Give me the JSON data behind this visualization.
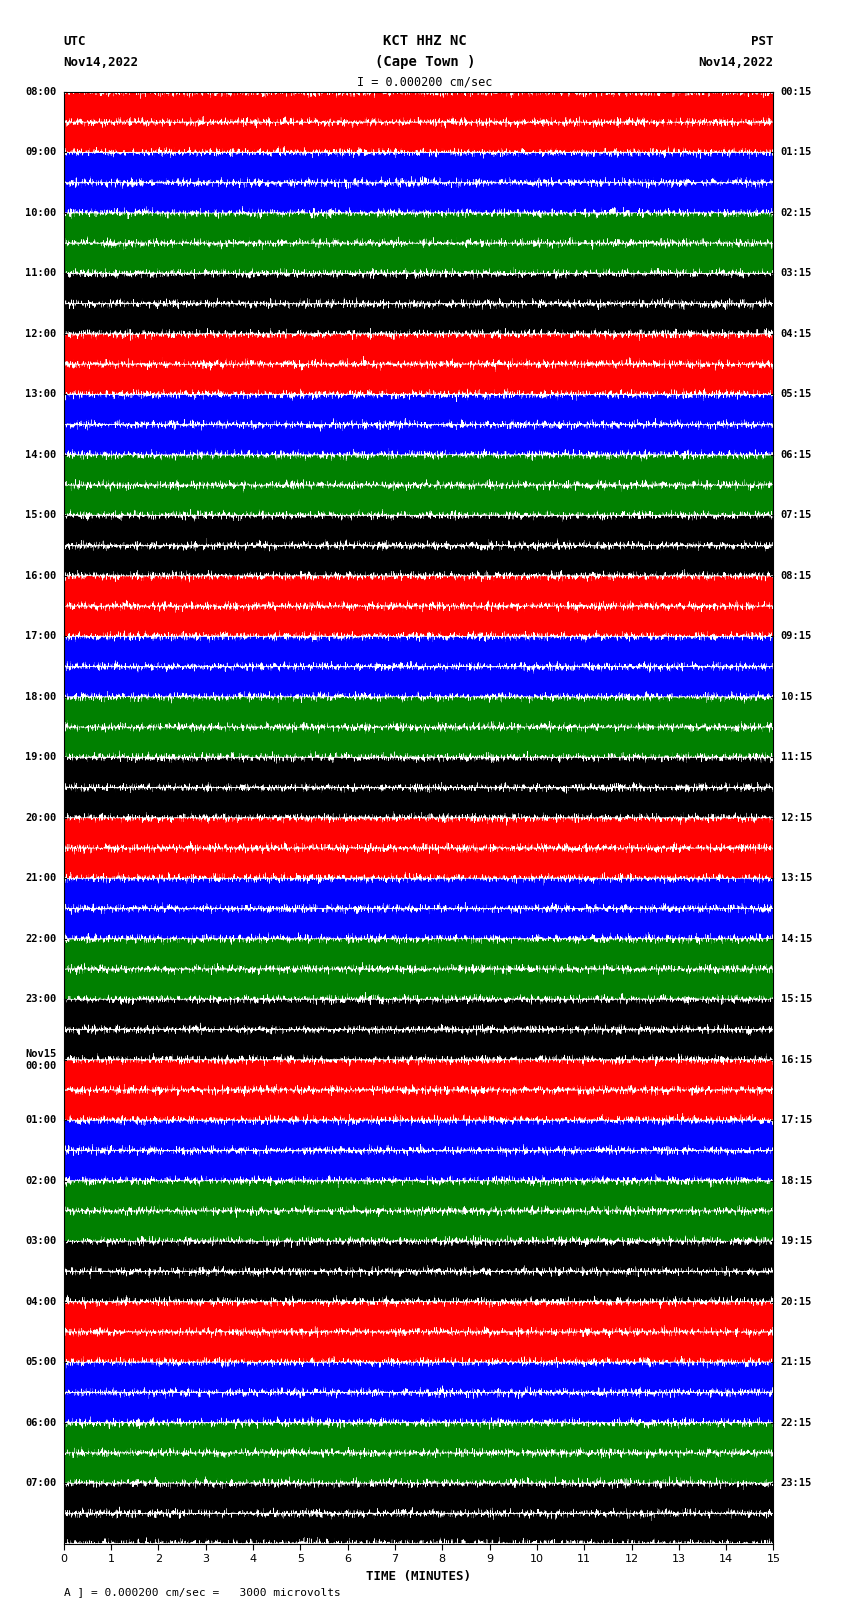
{
  "title_line1": "KCT HHZ NC",
  "title_line2": "(Cape Town )",
  "scale_label": "I = 0.000200 cm/sec",
  "left_label_line1": "UTC",
  "left_label_line2": "Nov14,2022",
  "right_label_line1": "PST",
  "right_label_line2": "Nov14,2022",
  "xlabel": "TIME (MINUTES)",
  "bottom_note": "A ] = 0.000200 cm/sec =   3000 microvolts",
  "utc_times": [
    "08:00",
    "09:00",
    "10:00",
    "11:00",
    "12:00",
    "13:00",
    "14:00",
    "15:00",
    "16:00",
    "17:00",
    "18:00",
    "19:00",
    "20:00",
    "21:00",
    "22:00",
    "23:00",
    "Nov15\n00:00",
    "01:00",
    "02:00",
    "03:00",
    "04:00",
    "05:00",
    "06:00",
    "07:00"
  ],
  "pst_times": [
    "00:15",
    "01:15",
    "02:15",
    "03:15",
    "04:15",
    "05:15",
    "06:15",
    "07:15",
    "08:15",
    "09:15",
    "10:15",
    "11:15",
    "12:15",
    "13:15",
    "14:15",
    "15:15",
    "16:15",
    "17:15",
    "18:15",
    "19:15",
    "20:15",
    "21:15",
    "22:15",
    "23:15"
  ],
  "num_rows": 24,
  "traces_per_row": 2,
  "minutes_per_row": 15,
  "sample_rate": 100,
  "trace_color_cycle": [
    "red",
    "blue",
    "green",
    "black"
  ],
  "bg_color": "white",
  "amplitude": 0.48,
  "xlim": [
    0,
    15
  ],
  "xticks": [
    0,
    1,
    2,
    3,
    4,
    5,
    6,
    7,
    8,
    9,
    10,
    11,
    12,
    13,
    14,
    15
  ],
  "figsize": [
    8.5,
    16.13
  ],
  "dpi": 100,
  "linewidth": 0.35
}
